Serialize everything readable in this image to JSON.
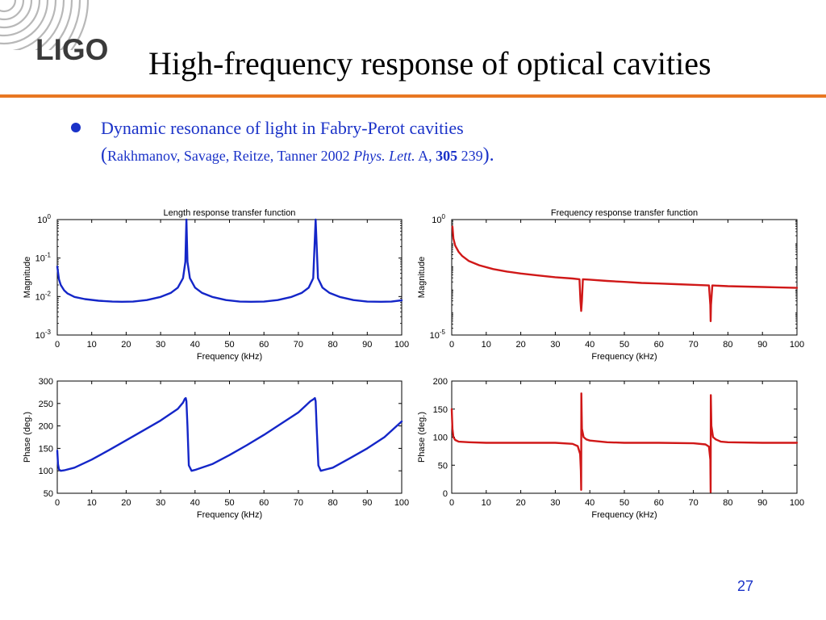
{
  "logo": {
    "text": "LIGO"
  },
  "slide": {
    "title": "High-frequency response of optical cavities",
    "bullet": "Dynamic resonance of light in Fabry-Perot cavities",
    "citation": {
      "open": "(",
      "authors": "Rakhmanov, Savage, Reitze, Tanner 2002 ",
      "journal": "Phys. Lett.",
      "section": " A, ",
      "volume": "305",
      "page": " 239",
      "close": ")."
    },
    "page_number": "27",
    "colors": {
      "title_rule": "#e87722",
      "bullet_text": "#1a32c8",
      "blue_trace": "#1426c8",
      "red_trace": "#d01818"
    }
  },
  "chart_data": [
    {
      "type": "line",
      "title": "Length response transfer function",
      "xlabel": "Frequency (kHz)",
      "ylabel": "Magnitude",
      "xlim": [
        0,
        100
      ],
      "ylim": [
        0.001,
        1
      ],
      "yscale": "log",
      "x_ticks": [
        "0",
        "10",
        "20",
        "30",
        "40",
        "50",
        "60",
        "70",
        "80",
        "90",
        "100"
      ],
      "y_ticks": [
        {
          "base": "10",
          "exp": "0"
        },
        {
          "base": "10",
          "exp": "-1"
        },
        {
          "base": "10",
          "exp": "-2"
        },
        {
          "base": "10",
          "exp": "-3"
        }
      ],
      "series": [
        {
          "color": "#1426c8",
          "x": [
            0,
            0.5,
            1,
            2,
            3,
            5,
            8,
            12,
            16,
            18.75,
            22,
            26,
            30,
            33,
            35,
            36.5,
            37.2,
            37.5,
            37.8,
            38.5,
            40,
            42,
            45,
            49,
            53,
            56.25,
            60,
            64,
            68,
            71,
            73,
            74.3,
            75,
            75.7,
            77,
            79,
            82,
            86,
            90,
            94,
            97,
            100
          ],
          "y": [
            0.06,
            0.028,
            0.02,
            0.0145,
            0.012,
            0.0098,
            0.0086,
            0.0078,
            0.0074,
            0.0073,
            0.0074,
            0.0081,
            0.0098,
            0.0125,
            0.017,
            0.03,
            0.08,
            1.0,
            0.08,
            0.03,
            0.017,
            0.0125,
            0.0098,
            0.0081,
            0.0074,
            0.0073,
            0.0074,
            0.0081,
            0.0098,
            0.0125,
            0.017,
            0.03,
            1.0,
            0.03,
            0.017,
            0.0125,
            0.0098,
            0.0081,
            0.0074,
            0.0073,
            0.0074,
            0.008
          ]
        }
      ]
    },
    {
      "type": "line",
      "title": "Frequency response transfer function",
      "xlabel": "Frequency (kHz)",
      "ylabel": "Magnitude",
      "xlim": [
        0,
        100
      ],
      "ylim": [
        1e-05,
        1
      ],
      "yscale": "log",
      "x_ticks": [
        "0",
        "10",
        "20",
        "30",
        "40",
        "50",
        "60",
        "70",
        "80",
        "90",
        "100"
      ],
      "y_ticks": [
        {
          "base": "10",
          "exp": "0"
        },
        {
          "base": "10",
          "exp": "-5"
        }
      ],
      "series": [
        {
          "color": "#d01818",
          "x": [
            0.2,
            0.5,
            1,
            2,
            3,
            5,
            8,
            12,
            16,
            20,
            25,
            30,
            35,
            37,
            37.3,
            37.5,
            37.7,
            38,
            40,
            45,
            50,
            55,
            60,
            65,
            70,
            74.5,
            74.9,
            75,
            75.1,
            75.5,
            80,
            85,
            90,
            95,
            100
          ],
          "y": [
            0.5,
            0.15,
            0.075,
            0.04,
            0.027,
            0.016,
            0.0105,
            0.0072,
            0.0056,
            0.0046,
            0.0038,
            0.0032,
            0.0028,
            0.0026,
            0.0003,
            0.00011,
            0.0003,
            0.0026,
            0.0025,
            0.0022,
            0.002,
            0.0018,
            0.0017,
            0.0016,
            0.0015,
            0.0014,
            0.0002,
            4e-05,
            0.0002,
            0.0014,
            0.0013,
            0.00125,
            0.0012,
            0.00115,
            0.0011
          ]
        }
      ]
    },
    {
      "type": "line",
      "title": "",
      "xlabel": "Frequency (kHz)",
      "ylabel": "Phase (deg.)",
      "xlim": [
        0,
        100
      ],
      "ylim": [
        50,
        300
      ],
      "yscale": "linear",
      "x_ticks": [
        "0",
        "10",
        "20",
        "30",
        "40",
        "50",
        "60",
        "70",
        "80",
        "90",
        "100"
      ],
      "y_ticks": [
        "300",
        "250",
        "200",
        "150",
        "100",
        "50"
      ],
      "series": [
        {
          "color": "#1426c8",
          "x": [
            0,
            0.2,
            0.5,
            1,
            2,
            5,
            10,
            15,
            20,
            25,
            30,
            35,
            36.5,
            37,
            37.3,
            37.5,
            37.8,
            38.2,
            39,
            40,
            45,
            50,
            55,
            60,
            65,
            70,
            73.5,
            74.5,
            74.8,
            75,
            75.3,
            75.8,
            76.5,
            78,
            80,
            85,
            90,
            95,
            100
          ],
          "y": [
            145,
            115,
            103,
            100,
            101,
            107,
            125,
            146,
            168,
            190,
            212,
            238,
            252,
            260,
            262,
            255,
            200,
            112,
            100,
            102,
            115,
            135,
            157,
            180,
            205,
            230,
            255,
            260,
            262,
            255,
            200,
            112,
            100,
            103,
            107,
            128,
            150,
            175,
            210
          ]
        }
      ]
    },
    {
      "type": "line",
      "title": "",
      "xlabel": "Frequency (kHz)",
      "ylabel": "Phase (deg.)",
      "xlim": [
        0,
        100
      ],
      "ylim": [
        0,
        200
      ],
      "yscale": "linear",
      "x_ticks": [
        "0",
        "10",
        "20",
        "30",
        "40",
        "50",
        "60",
        "70",
        "80",
        "90",
        "100"
      ],
      "y_ticks": [
        "200",
        "150",
        "100",
        "50",
        "0"
      ],
      "series": [
        {
          "color": "#d01818",
          "x": [
            0,
            0.2,
            0.5,
            1,
            2,
            5,
            10,
            20,
            30,
            35,
            36.5,
            37.2,
            37.4,
            37.5,
            37.55,
            37.7,
            38.2,
            39,
            40,
            45,
            50,
            60,
            70,
            73.5,
            74.5,
            74.9,
            75,
            75.05,
            75.2,
            75.7,
            76.5,
            78,
            80,
            90,
            100
          ],
          "y": [
            150,
            115,
            100,
            95,
            92,
            91,
            90,
            90,
            90,
            88,
            84,
            70,
            40,
            6,
            178,
            115,
            100,
            96,
            94,
            91,
            90,
            90,
            89,
            87,
            83,
            60,
            2,
            175,
            120,
            100,
            96,
            92,
            91,
            90,
            90
          ]
        }
      ]
    }
  ]
}
